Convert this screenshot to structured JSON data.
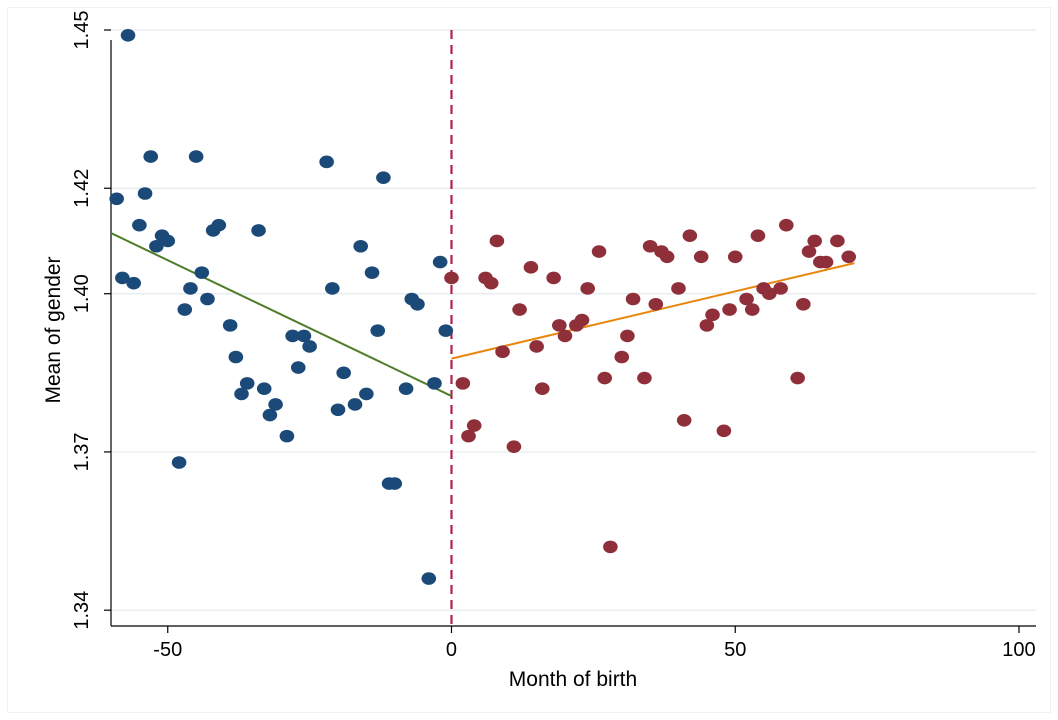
{
  "chart_data": {
    "type": "scatter",
    "xlabel": "Month of birth",
    "ylabel": "Mean of gender",
    "xlim": [
      -60,
      103
    ],
    "ylim": [
      1.337,
      1.45
    ],
    "x_ticks": [
      -50,
      0,
      50,
      100
    ],
    "x_tick_labels": [
      "-50",
      "0",
      "50",
      "100"
    ],
    "y_ticks": [
      1.34,
      1.37,
      1.4,
      1.42,
      1.45
    ],
    "y_tick_labels": [
      "1.34",
      "1.37",
      "1.40",
      "1.42",
      "1.45"
    ],
    "grid": "horizontal",
    "cutoff_line": {
      "x": 0,
      "style": "dashed",
      "color": "#b0234a"
    },
    "colors": {
      "before": "#1c4a78",
      "after": "#8f2f3a",
      "fit_before": "#4f7d2a",
      "fit_after": "#e8860c",
      "grid": "#e3e9ee"
    },
    "series": [
      {
        "points": [
          [
            -59,
            1.418
          ],
          [
            -58,
            1.403
          ],
          [
            -57,
            1.449
          ],
          [
            -56,
            1.402
          ],
          [
            -55,
            1.413
          ],
          [
            -54,
            1.419
          ],
          [
            -53,
            1.426
          ],
          [
            -52,
            1.409
          ],
          [
            -51,
            1.411
          ],
          [
            -50,
            1.41
          ],
          [
            -48,
            1.368
          ],
          [
            -47,
            1.397
          ],
          [
            -46,
            1.401
          ],
          [
            -45,
            1.426
          ],
          [
            -44,
            1.404
          ],
          [
            -43,
            1.399
          ],
          [
            -42,
            1.412
          ],
          [
            -41,
            1.413
          ],
          [
            -39,
            1.394
          ],
          [
            -38,
            1.388
          ],
          [
            -37,
            1.381
          ],
          [
            -36,
            1.383
          ],
          [
            -34,
            1.412
          ],
          [
            -33,
            1.382
          ],
          [
            -32,
            1.377
          ],
          [
            -31,
            1.379
          ],
          [
            -29,
            1.373
          ],
          [
            -28,
            1.392
          ],
          [
            -27,
            1.386
          ],
          [
            -26,
            1.392
          ],
          [
            -25,
            1.39
          ],
          [
            -22,
            1.425
          ],
          [
            -21,
            1.401
          ],
          [
            -20,
            1.378
          ],
          [
            -19,
            1.385
          ],
          [
            -17,
            1.379
          ],
          [
            -16,
            1.409
          ],
          [
            -15,
            1.381
          ],
          [
            -14,
            1.404
          ],
          [
            -13,
            1.393
          ],
          [
            -12,
            1.422
          ],
          [
            -11,
            1.364
          ],
          [
            -10,
            1.364
          ],
          [
            -8,
            1.382
          ],
          [
            -7,
            1.399
          ],
          [
            -6,
            1.398
          ],
          [
            -4,
            1.346
          ],
          [
            -3,
            1.383
          ],
          [
            -2,
            1.406
          ],
          [
            -1,
            1.393
          ]
        ]
      },
      {
        "points": [
          [
            0,
            1.403
          ],
          [
            2,
            1.383
          ],
          [
            3,
            1.373
          ],
          [
            4,
            1.375
          ],
          [
            6,
            1.403
          ],
          [
            7,
            1.402
          ],
          [
            8,
            1.41
          ],
          [
            9,
            1.389
          ],
          [
            11,
            1.371
          ],
          [
            12,
            1.397
          ],
          [
            14,
            1.405
          ],
          [
            15,
            1.39
          ],
          [
            16,
            1.382
          ],
          [
            18,
            1.403
          ],
          [
            19,
            1.394
          ],
          [
            20,
            1.392
          ],
          [
            22,
            1.394
          ],
          [
            23,
            1.395
          ],
          [
            24,
            1.401
          ],
          [
            26,
            1.408
          ],
          [
            27,
            1.384
          ],
          [
            28,
            1.352
          ],
          [
            30,
            1.388
          ],
          [
            31,
            1.392
          ],
          [
            32,
            1.399
          ],
          [
            34,
            1.384
          ],
          [
            35,
            1.409
          ],
          [
            36,
            1.398
          ],
          [
            37,
            1.408
          ],
          [
            38,
            1.407
          ],
          [
            40,
            1.401
          ],
          [
            41,
            1.376
          ],
          [
            42,
            1.411
          ],
          [
            44,
            1.407
          ],
          [
            45,
            1.394
          ],
          [
            46,
            1.396
          ],
          [
            48,
            1.374
          ],
          [
            49,
            1.397
          ],
          [
            50,
            1.407
          ],
          [
            52,
            1.399
          ],
          [
            53,
            1.397
          ],
          [
            54,
            1.411
          ],
          [
            55,
            1.401
          ],
          [
            56,
            1.4
          ],
          [
            58,
            1.401
          ],
          [
            59,
            1.413
          ],
          [
            61,
            1.384
          ],
          [
            62,
            1.398
          ],
          [
            63,
            1.408
          ],
          [
            64,
            1.41
          ],
          [
            65,
            1.406
          ],
          [
            66,
            1.406
          ],
          [
            68,
            1.41
          ],
          [
            70,
            1.407
          ]
        ]
      }
    ],
    "fit_lines": [
      {
        "x": [
          -60,
          0
        ],
        "y": [
          1.4115,
          1.3806
        ]
      },
      {
        "x": [
          0,
          71
        ],
        "y": [
          1.3877,
          1.4058
        ]
      }
    ]
  }
}
